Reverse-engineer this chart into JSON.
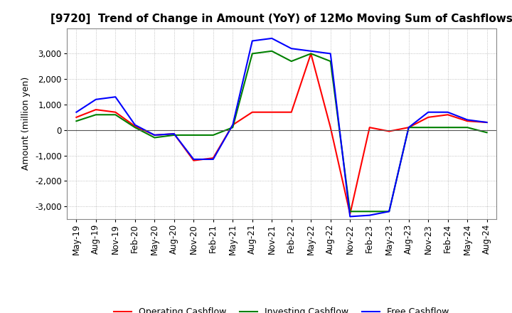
{
  "title": "[9720]  Trend of Change in Amount (YoY) of 12Mo Moving Sum of Cashflows",
  "ylabel": "Amount (million yen)",
  "ylim": [
    -3500,
    4000
  ],
  "yticks": [
    -3000,
    -2000,
    -1000,
    0,
    1000,
    2000,
    3000
  ],
  "x_labels": [
    "May-19",
    "Aug-19",
    "Nov-19",
    "Feb-20",
    "May-20",
    "Aug-20",
    "Nov-20",
    "Feb-21",
    "May-21",
    "Aug-21",
    "Nov-21",
    "Feb-22",
    "May-22",
    "Aug-22",
    "Nov-22",
    "Feb-23",
    "May-23",
    "Aug-23",
    "Nov-23",
    "Feb-24",
    "May-24",
    "Aug-24"
  ],
  "operating": [
    500,
    800,
    700,
    150,
    -200,
    -150,
    -1200,
    -1100,
    200,
    700,
    700,
    700,
    3000,
    100,
    -3300,
    100,
    -50,
    100,
    500,
    600,
    350,
    300
  ],
  "investing": [
    350,
    600,
    600,
    100,
    -300,
    -200,
    -200,
    -200,
    100,
    3000,
    3100,
    2700,
    3000,
    2700,
    -3200,
    -3200,
    -3200,
    100,
    100,
    100,
    100,
    -100
  ],
  "free": [
    700,
    1200,
    1300,
    200,
    -200,
    -150,
    -1150,
    -1150,
    200,
    3500,
    3600,
    3200,
    3100,
    3000,
    -3400,
    -3350,
    -3200,
    100,
    700,
    700,
    400,
    300
  ],
  "line_colors": {
    "operating": "#ff0000",
    "investing": "#008000",
    "free": "#0000ff"
  },
  "legend_labels": [
    "Operating Cashflow",
    "Investing Cashflow",
    "Free Cashflow"
  ],
  "background_color": "#ffffff",
  "grid_color": "#b0b0b0",
  "title_fontsize": 11,
  "axis_fontsize": 9,
  "tick_fontsize": 8.5
}
